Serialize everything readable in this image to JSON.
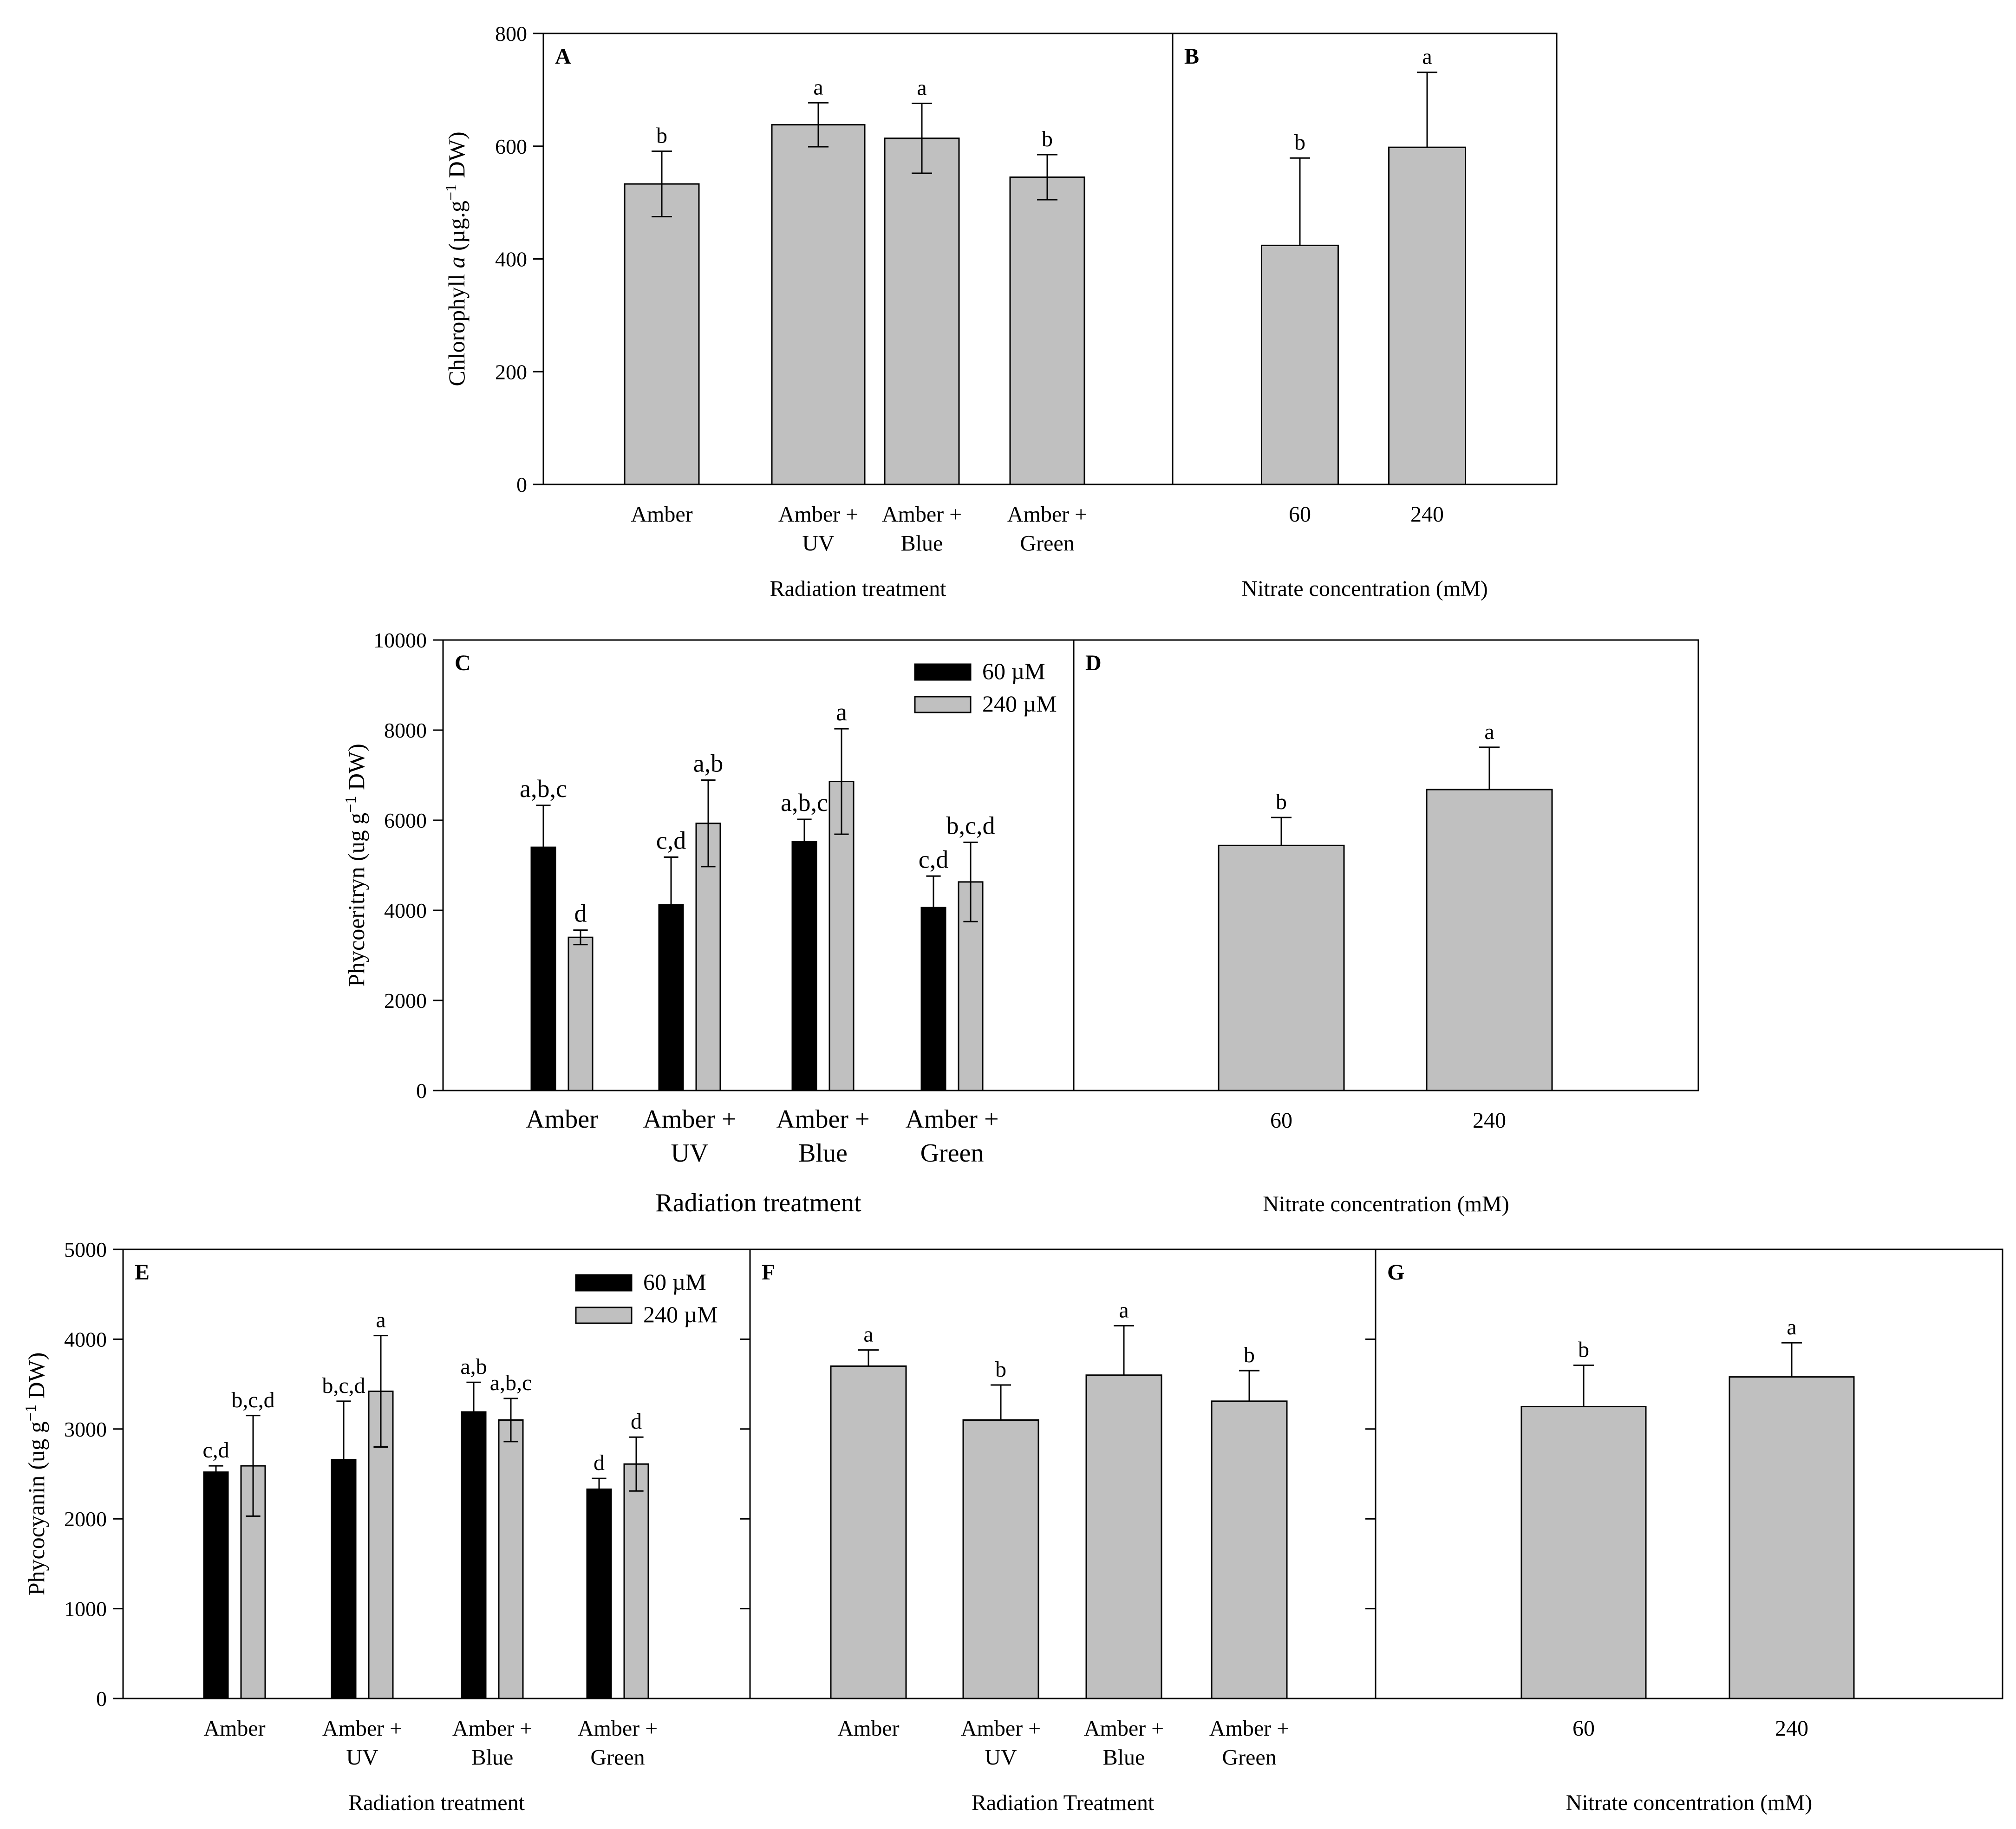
{
  "colors": {
    "bar_single": "#c0c0c0",
    "bar_60": "#000000",
    "bar_240": "#c0c0c0",
    "stroke": "#000000"
  },
  "chart_data": [
    {
      "panel": "A",
      "type": "bar",
      "title": "",
      "ylabel_parts": [
        "Chlorophyll ",
        "a",
        " (µg.g",
        "−1",
        " DW)"
      ],
      "xlabel": "Radiation treatment",
      "ylim": [
        0,
        800
      ],
      "yticks": [
        "0",
        "200",
        "400",
        "600",
        "800"
      ],
      "categories": [
        [
          "Amber"
        ],
        [
          "Amber +",
          "UV"
        ],
        [
          "Amber +",
          "Blue"
        ],
        [
          "Amber +",
          "Green"
        ]
      ],
      "series": [
        {
          "name": "",
          "values": [
            533,
            638,
            614,
            545
          ],
          "errors": [
            58,
            39,
            62,
            40
          ],
          "letters": [
            "b",
            "a",
            "a",
            "b"
          ]
        }
      ]
    },
    {
      "panel": "B",
      "type": "bar",
      "xlabel": "Nitrate concentration (mM)",
      "ylim": [
        0,
        800
      ],
      "categories": [
        [
          "60"
        ],
        [
          "240"
        ]
      ],
      "series": [
        {
          "name": "",
          "values": [
            424,
            598
          ],
          "errors": [
            155,
            133
          ],
          "letters": [
            "b",
            "a"
          ]
        }
      ]
    },
    {
      "panel": "C",
      "type": "bar",
      "ylabel_parts": [
        "Phycoeritryn (ug g",
        "−1",
        " DW)"
      ],
      "xlabel": "Radiation treatment",
      "ylim": [
        0,
        10000
      ],
      "yticks": [
        "0",
        "2000",
        "4000",
        "6000",
        "8000",
        "10000"
      ],
      "legend": [
        "60 µM",
        "240 µM"
      ],
      "categories": [
        [
          "Amber"
        ],
        [
          "Amber +",
          "UV"
        ],
        [
          "Amber +",
          "Blue"
        ],
        [
          "Amber +",
          "Green"
        ]
      ],
      "series": [
        {
          "name": "60 µM",
          "values": [
            5400,
            4120,
            5520,
            4060
          ],
          "errors": [
            930,
            1060,
            500,
            700
          ],
          "letters": [
            "a,b,c",
            "c,d",
            "a,b,c",
            "c,d"
          ]
        },
        {
          "name": "240 µM",
          "values": [
            3400,
            5930,
            6860,
            4630
          ],
          "errors": [
            160,
            960,
            1170,
            880
          ],
          "letters": [
            "d",
            "a,b",
            "a",
            "b,c,d"
          ]
        }
      ]
    },
    {
      "panel": "D",
      "type": "bar",
      "xlabel": "Nitrate concentration (mM)",
      "ylim": [
        0,
        10000
      ],
      "categories": [
        [
          "60"
        ],
        [
          "240"
        ]
      ],
      "series": [
        {
          "name": "",
          "values": [
            5440,
            6680
          ],
          "errors": [
            620,
            940
          ],
          "letters": [
            "b",
            "a"
          ]
        }
      ]
    },
    {
      "panel": "E",
      "type": "bar",
      "ylabel_parts": [
        "Phycocyanin (ug g",
        "−1",
        " DW)"
      ],
      "xlabel": "Radiation treatment",
      "ylim": [
        0,
        5000
      ],
      "yticks": [
        "0",
        "1000",
        "2000",
        "3000",
        "4000",
        "5000"
      ],
      "legend": [
        "60 µM",
        "240 µM"
      ],
      "categories": [
        [
          "Amber"
        ],
        [
          "Amber +",
          "UV"
        ],
        [
          "Amber +",
          "Blue"
        ],
        [
          "Amber +",
          "Green"
        ]
      ],
      "series": [
        {
          "name": "60 µM",
          "values": [
            2520,
            2660,
            3190,
            2330
          ],
          "errors": [
            70,
            650,
            330,
            120
          ],
          "letters": [
            "c,d",
            "b,c,d",
            "a,b",
            "d"
          ]
        },
        {
          "name": "240 µM",
          "values": [
            2590,
            3420,
            3100,
            2610
          ],
          "errors": [
            560,
            620,
            240,
            300
          ],
          "letters": [
            "b,c,d",
            "a",
            "a,b,c",
            "d"
          ]
        }
      ]
    },
    {
      "panel": "F",
      "type": "bar",
      "xlabel": "Radiation Treatment",
      "ylim": [
        0,
        5000
      ],
      "categories": [
        [
          "Amber"
        ],
        [
          "Amber +",
          "UV"
        ],
        [
          "Amber +",
          "Blue"
        ],
        [
          "Amber +",
          "Green"
        ]
      ],
      "series": [
        {
          "name": "",
          "values": [
            3700,
            3100,
            3600,
            3310
          ],
          "errors": [
            180,
            390,
            550,
            340
          ],
          "letters": [
            "a",
            "b",
            "a",
            "b"
          ]
        }
      ]
    },
    {
      "panel": "G",
      "type": "bar",
      "xlabel": "Nitrate concentration (mM)",
      "ylim": [
        0,
        5000
      ],
      "categories": [
        [
          "60"
        ],
        [
          "240"
        ]
      ],
      "series": [
        {
          "name": "",
          "values": [
            3250,
            3580
          ],
          "errors": [
            460,
            380
          ],
          "letters": [
            "b",
            "a"
          ]
        }
      ]
    }
  ]
}
